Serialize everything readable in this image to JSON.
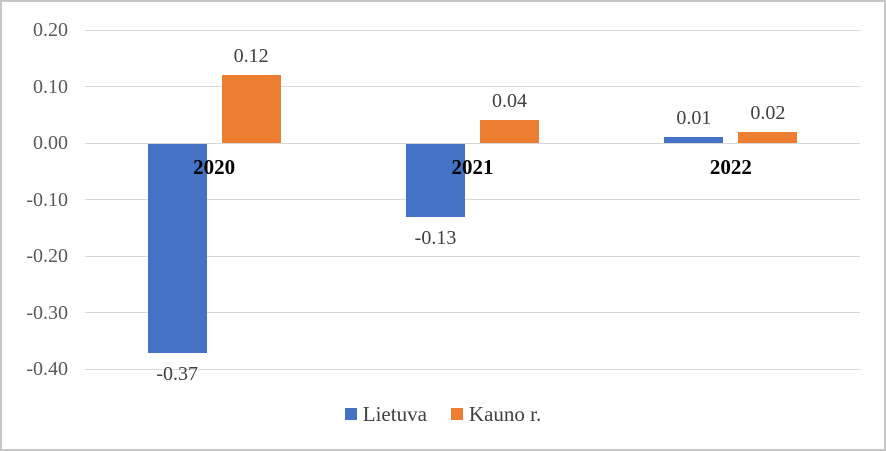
{
  "chart_data": {
    "type": "bar",
    "title": "",
    "categories": [
      "2020",
      "2021",
      "2022"
    ],
    "series": [
      {
        "name": "Lietuva",
        "color": "#4472C4",
        "values": [
          -0.37,
          -0.13,
          0.01
        ],
        "labels": [
          "-0.37",
          "-0.13",
          "0.01"
        ]
      },
      {
        "name": "Kauno r.",
        "color": "#ED7D31",
        "values": [
          0.12,
          0.04,
          0.02
        ],
        "labels": [
          "0.12",
          "0.04",
          "0.02"
        ]
      }
    ],
    "y_axis": {
      "min": -0.4,
      "max": 0.2,
      "step": 0.1,
      "tick_values": [
        0.2,
        0.1,
        0.0,
        -0.1,
        -0.2,
        -0.3,
        -0.4
      ],
      "tick_labels": [
        "0.20",
        "0.10",
        "0.00",
        "-0.10",
        "-0.20",
        "-0.30",
        "-0.40"
      ]
    },
    "grid": true,
    "legend": {
      "position": "bottom",
      "entries": [
        "Lietuva",
        "Kauno r."
      ]
    },
    "colors": {
      "gridline": "#D9D9D9",
      "axis_label": "#595959",
      "data_label": "#404040",
      "category_label": "#000000",
      "border": "#C6C6C6"
    }
  }
}
